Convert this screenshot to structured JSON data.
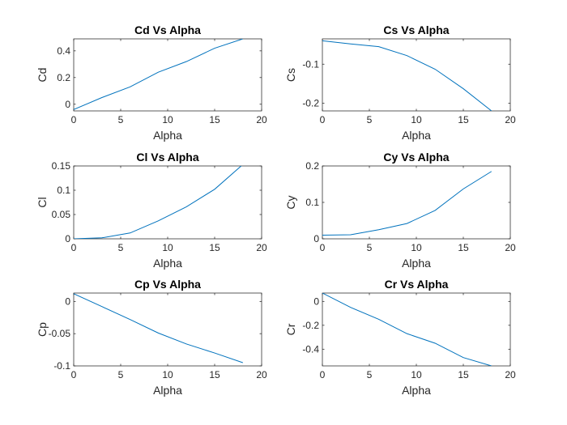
{
  "figure": {
    "background": "#ffffff",
    "line_color": "#0072bd",
    "axis_color": "#262626"
  },
  "chart_data": [
    {
      "type": "line",
      "title": "Cd Vs Alpha",
      "xlabel": "Alpha",
      "ylabel": "Cd",
      "xlim": [
        0,
        20
      ],
      "ylim": [
        -0.05,
        0.49
      ],
      "xticks": [
        0,
        5,
        10,
        15,
        20
      ],
      "yticks": [
        0,
        0.2,
        0.4
      ],
      "ytick_labels": [
        "0",
        "0.2",
        "0.4"
      ],
      "grid": false,
      "series": [
        {
          "x": [
            0,
            3,
            6,
            9,
            12,
            15,
            18
          ],
          "y": [
            -0.04,
            0.05,
            0.13,
            0.24,
            0.32,
            0.42,
            0.49
          ]
        }
      ]
    },
    {
      "type": "line",
      "title": "Cs Vs Alpha",
      "xlabel": "Alpha",
      "ylabel": "Cs",
      "xlim": [
        0,
        20
      ],
      "ylim": [
        -0.22,
        -0.035
      ],
      "xticks": [
        0,
        5,
        10,
        15,
        20
      ],
      "yticks": [
        -0.2,
        -0.1
      ],
      "ytick_labels": [
        "-0.2",
        "-0.1"
      ],
      "grid": false,
      "series": [
        {
          "x": [
            0,
            3,
            6,
            9,
            12,
            15,
            18
          ],
          "y": [
            -0.04,
            -0.048,
            -0.055,
            -0.078,
            -0.113,
            -0.163,
            -0.22
          ]
        }
      ]
    },
    {
      "type": "line",
      "title": "Cl Vs Alpha",
      "xlabel": "Alpha",
      "ylabel": "Cl",
      "xlim": [
        0,
        20
      ],
      "ylim": [
        0,
        0.15
      ],
      "xticks": [
        0,
        5,
        10,
        15,
        20
      ],
      "yticks": [
        0,
        0.05,
        0.1,
        0.15
      ],
      "ytick_labels": [
        "0",
        "0.05",
        "0.1",
        "0.15"
      ],
      "grid": false,
      "series": [
        {
          "x": [
            0,
            3,
            6,
            9,
            12,
            15,
            18
          ],
          "y": [
            0,
            0.002,
            0.012,
            0.037,
            0.066,
            0.102,
            0.153
          ]
        }
      ]
    },
    {
      "type": "line",
      "title": "Cy Vs Alpha",
      "xlabel": "Alpha",
      "ylabel": "Cy",
      "xlim": [
        0,
        20
      ],
      "ylim": [
        0,
        0.2
      ],
      "xticks": [
        0,
        5,
        10,
        15,
        20
      ],
      "yticks": [
        0,
        0.1,
        0.2
      ],
      "ytick_labels": [
        "0",
        "0.1",
        "0.2"
      ],
      "grid": false,
      "series": [
        {
          "x": [
            0,
            3,
            6,
            9,
            12,
            15,
            18
          ],
          "y": [
            0.01,
            0.011,
            0.025,
            0.042,
            0.078,
            0.137,
            0.185
          ]
        }
      ]
    },
    {
      "type": "line",
      "title": "Cp Vs Alpha",
      "xlabel": "Alpha",
      "ylabel": "Cp",
      "xlim": [
        0,
        20
      ],
      "ylim": [
        -0.1,
        0.013
      ],
      "xticks": [
        0,
        5,
        10,
        15,
        20
      ],
      "yticks": [
        -0.1,
        -0.05,
        0
      ],
      "ytick_labels": [
        "-0.1",
        "-0.05",
        "0"
      ],
      "grid": false,
      "series": [
        {
          "x": [
            0,
            3,
            6,
            9,
            12,
            15,
            18
          ],
          "y": [
            0.012,
            -0.008,
            -0.028,
            -0.049,
            -0.066,
            -0.08,
            -0.095
          ]
        }
      ]
    },
    {
      "type": "line",
      "title": "Cr Vs Alpha",
      "xlabel": "Alpha",
      "ylabel": "Cr",
      "xlim": [
        0,
        20
      ],
      "ylim": [
        -0.54,
        0.07
      ],
      "xticks": [
        0,
        5,
        10,
        15,
        20
      ],
      "yticks": [
        -0.4,
        -0.2,
        0
      ],
      "ytick_labels": [
        "-0.4",
        "-0.2",
        "0"
      ],
      "grid": false,
      "series": [
        {
          "x": [
            0,
            3,
            6,
            9,
            12,
            15,
            18
          ],
          "y": [
            0.07,
            -0.05,
            -0.15,
            -0.27,
            -0.35,
            -0.47,
            -0.54
          ]
        }
      ]
    }
  ]
}
